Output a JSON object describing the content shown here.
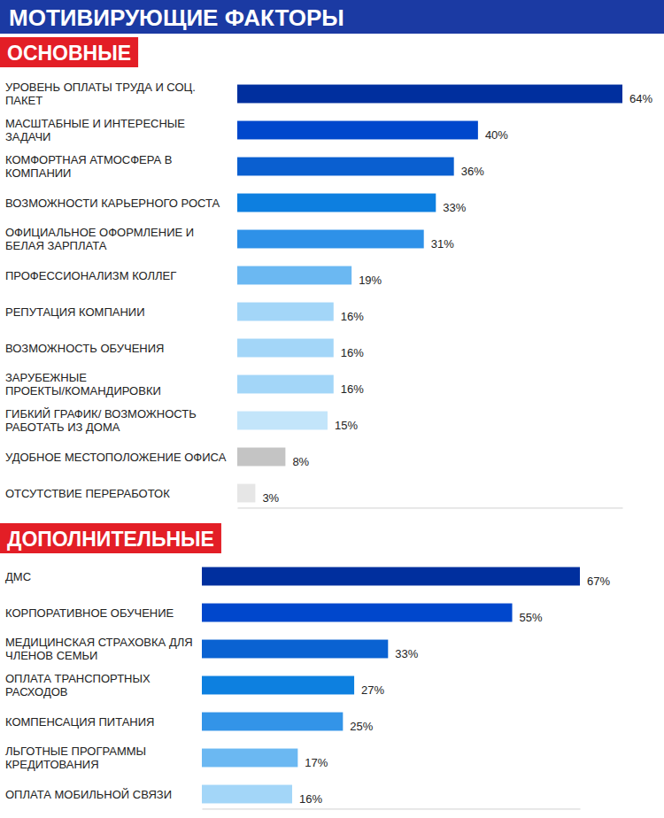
{
  "title": "МОТИВИРУЮЩИЕ ФАКТОРЫ",
  "chart_data": [
    {
      "type": "bar",
      "title": "ОСНОВНЫЕ",
      "orientation": "horizontal",
      "categories": [
        "УРОВЕНЬ ОПЛАТЫ ТРУДА И СОЦ. ПАКЕТ",
        "МАСШТАБНЫЕ И ИНТЕРЕСНЫЕ ЗАДАЧИ",
        "КОМФОРТНАЯ АТМОСФЕРА В КОМПАНИИ",
        "ВОЗМОЖНОСТИ КАРЬЕРНОГО РОСТА",
        "ОФИЦИАЛЬНОЕ ОФОРМЛЕНИЕ И БЕЛАЯ ЗАРПЛАТА",
        "ПРОФЕССИОНАЛИЗМ КОЛЛЕГ",
        "РЕПУТАЦИЯ КОМПАНИИ",
        "ВОЗМОЖНОСТЬ ОБУЧЕНИЯ",
        "ЗАРУБЕЖНЫЕ ПРОЕКТЫ/КОМАНДИРОВКИ",
        "ГИБКИЙ ГРАФИК/ ВОЗМОЖНОСТЬ РАБОТАТЬ ИЗ ДОМА",
        "УДОБНОЕ МЕСТОПОЛОЖЕНИЕ ОФИСА",
        "ОТСУТСТВИЕ ПЕРЕРАБОТОК"
      ],
      "values": [
        64,
        40,
        36,
        33,
        31,
        19,
        16,
        16,
        16,
        15,
        8,
        3
      ],
      "value_labels": [
        "64%",
        "40%",
        "36%",
        "33%",
        "31%",
        "19%",
        "16%",
        "16%",
        "16%",
        "15%",
        "8%",
        "3%"
      ],
      "colors": [
        "#002f9e",
        "#0047cc",
        "#0a5fd0",
        "#0d7fe0",
        "#2e91e8",
        "#6bb8f2",
        "#a3d6f8",
        "#a3d6f8",
        "#a3d6f8",
        "#c3e5fa",
        "#c4c4c4",
        "#e6e6e6"
      ],
      "xlim": [
        0,
        64
      ],
      "xticks": [],
      "tick_labels": false,
      "data_labels": true,
      "grid": false
    },
    {
      "type": "bar",
      "title": "ДОПОЛНИТЕЛЬНЫЕ",
      "orientation": "horizontal",
      "categories": [
        "ДМС",
        "КОРПОРАТИВНОЕ ОБУЧЕНИЕ",
        "МЕДИЦИНСКАЯ СТРАХОВКА ДЛЯ ЧЛЕНОВ СЕМЬИ",
        "ОПЛАТА ТРАНСПОРТНЫХ РАСХОДОВ",
        "КОМПЕНСАЦИЯ ПИТАНИЯ",
        "ЛЬГОТНЫЕ ПРОГРАММЫ КРЕДИТОВАНИЯ",
        "ОПЛАТА МОБИЛЬНОЙ СВЯЗИ"
      ],
      "values": [
        67,
        55,
        33,
        27,
        25,
        17,
        16
      ],
      "value_labels": [
        "67%",
        "55%",
        "33%",
        "27%",
        "25%",
        "17%",
        "16%"
      ],
      "colors": [
        "#002f9e",
        "#0047cc",
        "#0a62d2",
        "#0d80e0",
        "#3394e8",
        "#6bb8f2",
        "#a3d6f8"
      ],
      "xlim": [
        0,
        67
      ],
      "xticks": [],
      "tick_labels": false,
      "data_labels": true,
      "grid": false
    }
  ]
}
